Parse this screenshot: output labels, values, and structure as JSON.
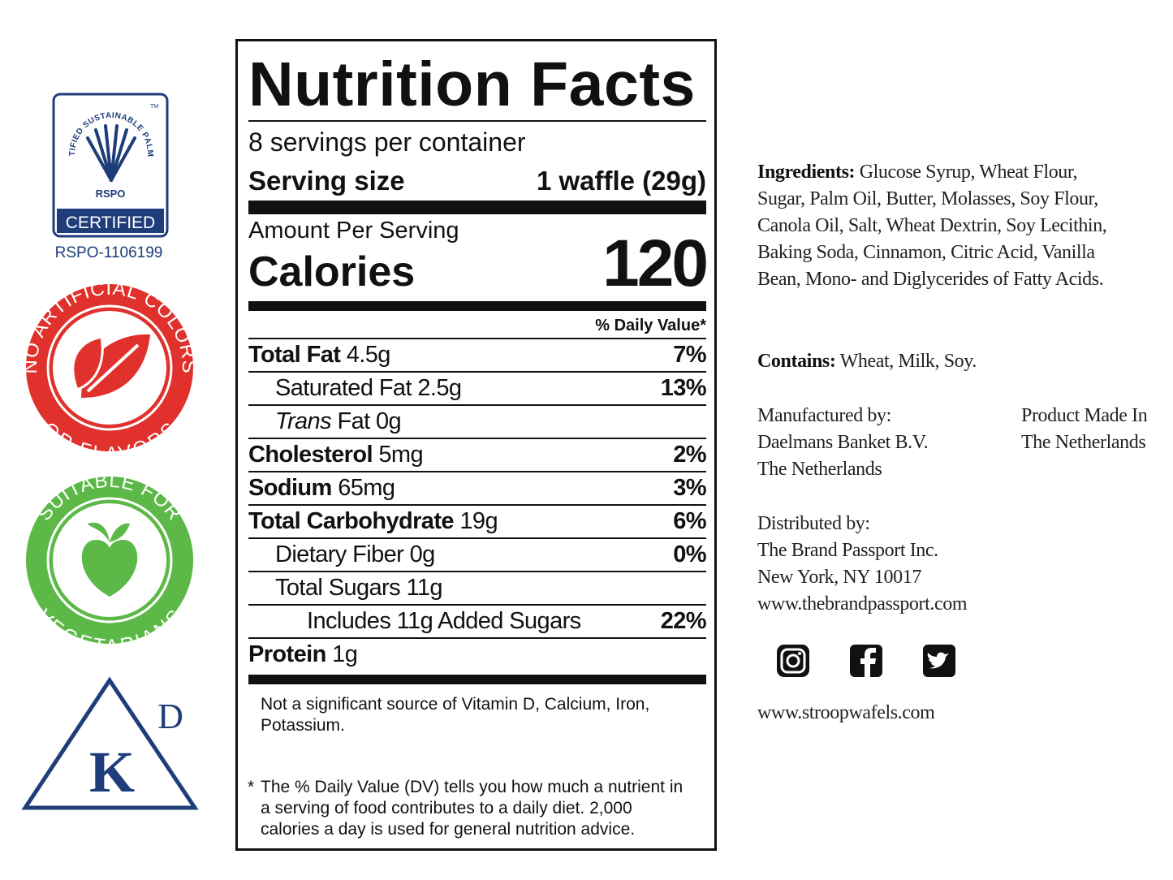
{
  "badges": {
    "rspo": {
      "arc_text": "CERTIFIED SUSTAINABLE PALM OIL",
      "trademark": "TM",
      "logo_text": "RSPO",
      "banner": "CERTIFIED",
      "member_id": "RSPO-1106199"
    },
    "artificial": {
      "top_text": "NO ARTIFICIAL COLORS",
      "bottom_text": "OR FLAVORS"
    },
    "vegetarian": {
      "top_text": "SUITABLE FOR",
      "bottom_text": "VEGETARIANS"
    },
    "kosher": {
      "letter": "K",
      "dairy": "D"
    }
  },
  "nutrition_facts": {
    "title": "Nutrition Facts",
    "servings": "8 servings per container",
    "serving_size_label": "Serving size",
    "serving_size_value": "1 waffle (29g)",
    "amount_per_serving": "Amount Per Serving",
    "calories_label": "Calories",
    "calories_value": 120,
    "daily_value_header": "% Daily Value*",
    "rows": [
      {
        "name": "Total Fat",
        "amount": "4.5g",
        "dv": "7%"
      },
      {
        "name": "Saturated Fat",
        "amount": "2.5g",
        "dv": "13%"
      },
      {
        "italic": "Trans",
        "name": "Fat",
        "amount": "0g"
      },
      {
        "name": "Cholesterol",
        "amount": "5mg",
        "dv": "2%"
      },
      {
        "name": "Sodium",
        "amount": "65mg",
        "dv": "3%"
      },
      {
        "name": "Total Carbohydrate",
        "amount": "19g",
        "dv": "6%"
      },
      {
        "name": "Dietary Fiber",
        "amount": "0g",
        "dv": "0%"
      },
      {
        "name": "Total Sugars",
        "amount": "11g"
      },
      {
        "name": "Includes 11g Added Sugars",
        "dv": "22%"
      },
      {
        "name": "Protein",
        "amount": "1g"
      }
    ],
    "vitamins_note": "Not a significant source of Vitamin D, Calcium, Iron, Potassium.",
    "dv_note_mark": "*",
    "dv_note": "The % Daily Value (DV) tells you how much a nutrient in a serving of food contributes to a daily diet. 2,000 calories a day is used for general nutrition advice."
  },
  "info": {
    "ingredients_label": "Ingredients:",
    "ingredients": "Glucose Syrup, Wheat Flour, Sugar, Palm Oil, Butter, Molasses, Soy Flour, Canola Oil, Salt, Wheat Dextrin, Soy Lecithin, Baking Soda, Cinnamon, Citric Acid, Vanilla Bean, Mono- and Diglycerides of Fatty Acids.",
    "contains_label": "Contains:",
    "contains": "Wheat, Milk, Soy.",
    "manufactured_by": [
      "Manufactured by:",
      "Daelmans Banket B.V.",
      "The Netherlands"
    ],
    "made_in": [
      "Product Made In",
      "The Netherlands"
    ],
    "distributed_by": [
      "Distributed by:",
      "The Brand Passport Inc.",
      "New York, NY 10017",
      "www.thebrandpassport.com"
    ],
    "website": "www.stroopwafels.com"
  }
}
